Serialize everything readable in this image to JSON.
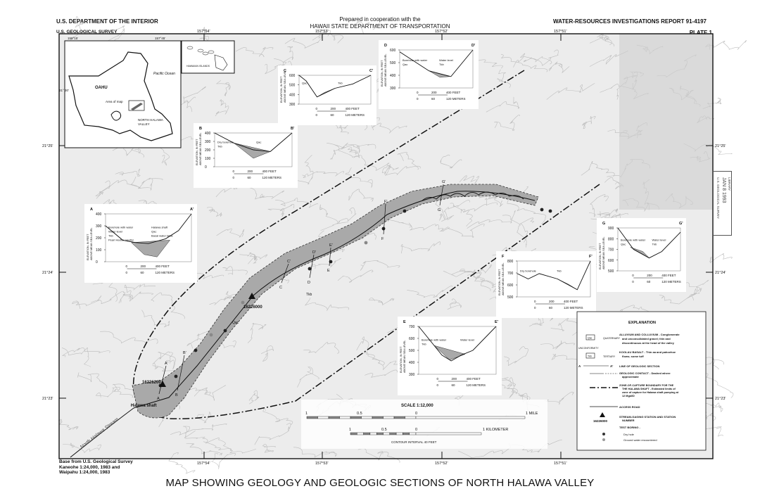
{
  "header": {
    "agency": "U.S. DEPARTMENT OF THE INTERIOR",
    "survey": "U.S. GEOLOGICAL SURVEY",
    "coop_line1": "Prepared in cooperation with the",
    "coop_line2": "HAWAII STATE DEPARTMENT OF TRANSPORTATION",
    "report": "WATER-RESOURCES INVESTIGATIONS REPORT 91-4197",
    "plate": "PLATE 1"
  },
  "title": "MAP SHOWING GEOLOGY AND GEOLOGIC SECTIONS OF NORTH HALAWA VALLEY",
  "credit": [
    "Base from U.S. Geological Survey",
    "Kaneohe 1:24,000, 1983 and",
    "Waipahu 1:24,000, 1983"
  ],
  "grid": {
    "longitudes": [
      "157°54'",
      "157°53'",
      "157°52'",
      "157°51'"
    ],
    "latitudes": [
      "21°25'",
      "21°24'",
      "21°23'"
    ]
  },
  "inset": {
    "lon_left": "158°15'",
    "lon_right": "157°45'",
    "lat": "21° 30'",
    "island": "OAHU",
    "ocean": "Pacific Ocean",
    "area_label": "Area of map",
    "valley_label": [
      "NORTH HALAWA",
      "VALLEY"
    ],
    "islands_label": "HAWAIIAN ISLANDS"
  },
  "map_labels": {
    "station": "16226000",
    "station2": "16226200",
    "shaft": "Halawa shaft",
    "stream": "North Halawa Stream",
    "unit_qac": "Qac",
    "unit_tkb": "Tkb",
    "section_points": [
      "A",
      "A'",
      "B",
      "B'",
      "C",
      "C'",
      "D",
      "D'",
      "E",
      "E'",
      "F",
      "F'",
      "G",
      "G'"
    ]
  },
  "sections": [
    {
      "id": "A",
      "left": "A",
      "right": "A'",
      "yticks": [
        "0",
        "100",
        "200",
        "300",
        "400"
      ],
      "notes": [
        "Borehole with water",
        "Halawa shaft",
        "Water level",
        "Qac",
        "Tkb",
        "Basal water table",
        "Pearl Harbor aquifer"
      ]
    },
    {
      "id": "B",
      "left": "B",
      "right": "B'",
      "yticks": [
        "0",
        "100",
        "200",
        "300",
        "400"
      ],
      "notes": [
        "Dry borehole",
        "Qac",
        "Tkb"
      ]
    },
    {
      "id": "C",
      "left": "C",
      "right": "C'",
      "yticks": [
        "300",
        "400",
        "500",
        "600"
      ],
      "notes": [
        "Qac",
        "Tkb"
      ]
    },
    {
      "id": "D",
      "left": "D",
      "right": "D'",
      "yticks": [
        "300",
        "400",
        "500",
        "600"
      ],
      "notes": [
        "Borehole with water",
        "Water level",
        "Qac",
        "Tkb"
      ]
    },
    {
      "id": "E",
      "left": "E",
      "right": "E'",
      "yticks": [
        "300",
        "400",
        "500",
        "600",
        "700"
      ],
      "notes": [
        "Borehole with water",
        "Water level",
        "Tkb"
      ]
    },
    {
      "id": "F",
      "left": "F",
      "right": "F'",
      "yticks": [
        "500",
        "600",
        "700",
        "800"
      ],
      "notes": [
        "Dry borehole",
        "Tkb"
      ]
    },
    {
      "id": "G",
      "left": "G",
      "right": "G'",
      "yticks": [
        "500",
        "600",
        "700",
        "800",
        "900"
      ],
      "notes": [
        "Borehole with water",
        "Water level",
        "Qac",
        "Tkb"
      ]
    }
  ],
  "section_common": {
    "ylabel1": "ELEVATION, IN FEET",
    "ylabel2": "ABOVE MEAN SEA LEVEL",
    "scale": [
      "0",
      "200",
      "400 FEET",
      "0",
      "60",
      "120 METERS"
    ]
  },
  "scale": {
    "title": "SCALE 1:12,000",
    "miles": [
      "1",
      "0.5",
      "0",
      "1 MILE"
    ],
    "km": [
      "1",
      "0.5",
      "0",
      "1 KILOMETER"
    ],
    "contour": "CONTOUR INTERVAL 40 FEET"
  },
  "explanation": {
    "title": "EXPLANATION",
    "qac_box": "Qac",
    "quaternary": "QUATERNARY",
    "unconformity": "UNCONFORMITY",
    "tkb_box": "Tkb",
    "tertiary": "TERTIARY",
    "alluvium": [
      "ALLUVIUM AND COLLUVIUM - Conglomerate",
      "and unconsolidated gravel; thin and",
      "discontinuous at the head of the valley"
    ],
    "basalt": [
      "KOOLAU BASALT - Thin aa and pahoehoe",
      "flows; some tuff"
    ],
    "section_a": "A",
    "section_a2": "A'",
    "section_line": "LINE OF GEOLOGIC SECTION",
    "contact": [
      "GEOLOGIC CONTACT - Dashed where",
      "approximate"
    ],
    "zone": [
      "ZONE-OF-CAPTURE BOUNDARY FOR THE",
      "THE HALAWA SHAFT - Estimated limits of",
      "zone of capture for Halawa shaft pumping at",
      "12 Mgal/D"
    ],
    "road": "ACCESS ROAD",
    "station_num": "16226000",
    "station": [
      "STREAM-GAGING STATION AND STATION",
      "NUMBER"
    ],
    "boring": "TEST BORING -",
    "dry": "Dry hole",
    "ground": "Ground water encountered"
  },
  "stamp": [
    "U.S. GEOLOGICAL SURVEY",
    "JAN 8 1993",
    "LIBRARY"
  ],
  "colors": {
    "qac": "#a9a9a9",
    "paper": "#ffffff",
    "map_bg": "#ececec",
    "ink": "#111111",
    "contour": "#bdbdbd"
  }
}
